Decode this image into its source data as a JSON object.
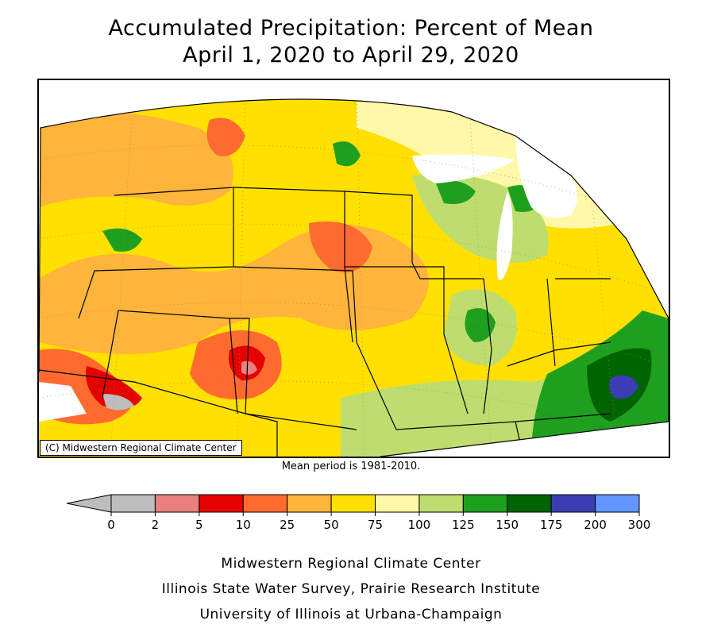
{
  "title": {
    "line1": "Accumulated Precipitation: Percent of Mean",
    "line2": "April 1, 2020 to April 29, 2020"
  },
  "map": {
    "credit": "(C) Midwestern Regional Climate Center"
  },
  "note": "Mean period is 1981-2010.",
  "legend": {
    "ticks": [
      "0",
      "2",
      "5",
      "10",
      "25",
      "50",
      "75",
      "100",
      "125",
      "150",
      "175",
      "200",
      "300"
    ],
    "bins": [
      {
        "color": "#bdbdbd"
      },
      {
        "color": "#e88080"
      },
      {
        "color": "#e60000"
      },
      {
        "color": "#ff6b2e"
      },
      {
        "color": "#ffb43c"
      },
      {
        "color": "#ffe000"
      },
      {
        "color": "#fff8a8"
      },
      {
        "color": "#bedd6e"
      },
      {
        "color": "#1ea01e"
      },
      {
        "color": "#006400"
      },
      {
        "color": "#3c3cb4"
      },
      {
        "color": "#6496ff"
      }
    ],
    "below_color": "#bdbdbd"
  },
  "footer": {
    "line1": "Midwestern Regional Climate Center",
    "line2": "Illinois State Water Survey, Prairie Research Institute",
    "line3": "University of Illinois at Urbana-Champaign"
  }
}
